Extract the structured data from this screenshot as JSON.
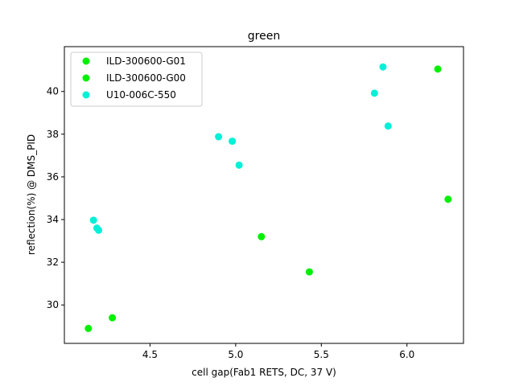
{
  "chart_data": {
    "type": "scatter",
    "title": "green",
    "xlabel": "cell gap(Fab1 RETS, DC, 37 V)",
    "ylabel": "reflection(%) @ DMS_PID",
    "xlim": [
      4.0,
      6.33
    ],
    "ylim": [
      28.2,
      42.1
    ],
    "xticks": [
      4.5,
      5.0,
      5.5,
      6.0
    ],
    "xtick_labels": [
      "4.5",
      "5.0",
      "5.5",
      "6.0"
    ],
    "yticks": [
      30,
      32,
      34,
      36,
      38,
      40
    ],
    "ytick_labels": [
      "30",
      "32",
      "34",
      "36",
      "38",
      "40"
    ],
    "legend_position": "upper-left",
    "series": [
      {
        "name": "ILD-300600-G01",
        "color": "#00f000",
        "x": [
          5.15,
          5.43,
          6.24
        ],
        "y": [
          33.2,
          31.55,
          34.95
        ]
      },
      {
        "name": "ILD-300600-G00",
        "color": "#00f000",
        "x": [
          4.14,
          4.28,
          6.18
        ],
        "y": [
          28.9,
          29.4,
          41.05
        ]
      },
      {
        "name": "U10-006C-550",
        "color": "#00f0d8",
        "x": [
          4.17,
          4.19,
          4.2,
          4.9,
          4.98,
          5.02,
          5.81,
          5.86,
          5.89
        ],
        "y": [
          33.97,
          33.6,
          33.5,
          37.88,
          37.67,
          36.55,
          39.92,
          41.15,
          38.38
        ]
      }
    ]
  }
}
